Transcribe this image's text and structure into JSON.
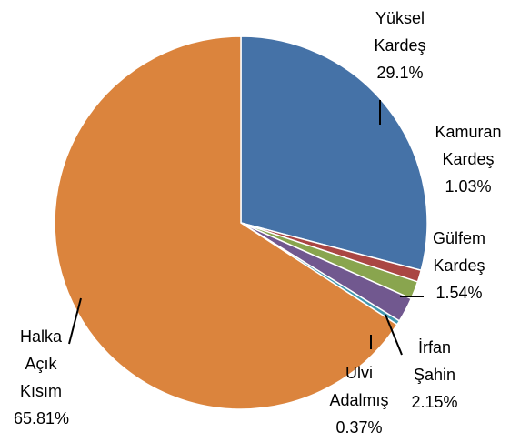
{
  "chart_data": {
    "type": "pie",
    "categories": [
      "Yüksel Kardeş",
      "Kamuran Kardeş",
      "Gülfem Kardeş",
      "İrfan Şahin",
      "Ulvi Adalmış",
      "Halka Açık Kısım"
    ],
    "values": [
      29.1,
      1.03,
      1.54,
      2.15,
      0.37,
      65.81
    ],
    "value_labels": [
      "29.1%",
      "1.03%",
      "1.54%",
      "2.15%",
      "0.37%",
      "65.81%"
    ],
    "colors": [
      "#4572a7",
      "#aa4643",
      "#89a54e",
      "#71588f",
      "#4198af",
      "#db843d"
    ]
  }
}
